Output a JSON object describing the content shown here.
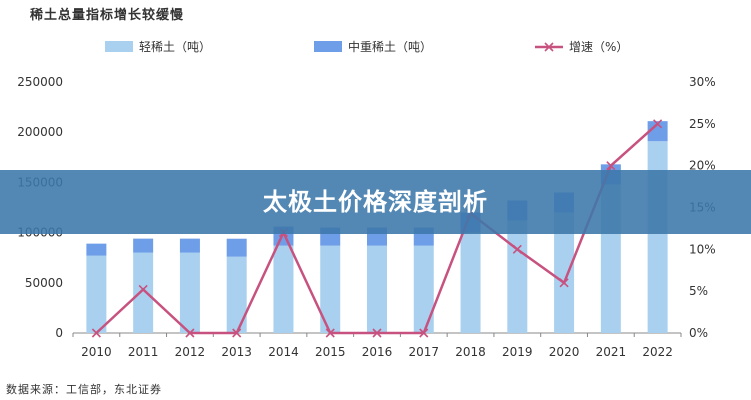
{
  "title": "稀土总量指标增长较缓慢",
  "banner": "太极土价格深度剖析",
  "source": "数据来源：工信部，东北证券",
  "colors": {
    "light": "#a9d1ef",
    "medium": "#6e9ee8",
    "line": "#c8527f",
    "banner": "#3c78aa"
  },
  "chart_data": {
    "type": "bar",
    "categories": [
      "2010",
      "2011",
      "2012",
      "2013",
      "2014",
      "2015",
      "2016",
      "2017",
      "2018",
      "2019",
      "2020",
      "2021",
      "2022"
    ],
    "series": [
      {
        "name": "轻稀土（吨）",
        "type": "bar",
        "stack": "total",
        "axis": "left",
        "values": [
          77000,
          80000,
          80000,
          76000,
          87000,
          87000,
          87000,
          87000,
          100000,
          112000,
          120000,
          148000,
          191000
        ]
      },
      {
        "name": "中重稀土（吨）",
        "type": "bar",
        "stack": "total",
        "axis": "left",
        "values": [
          12000,
          14000,
          14000,
          17900,
          19000,
          18000,
          18000,
          18000,
          20000,
          20000,
          20000,
          20000,
          20000
        ]
      },
      {
        "name": "增速（%）",
        "type": "line",
        "axis": "right",
        "values": [
          0,
          5.2,
          0,
          0,
          12,
          0,
          0,
          0,
          14.3,
          10,
          6,
          20,
          25
        ]
      }
    ],
    "y_left": {
      "min": 0,
      "max": 250000,
      "ticks": [
        "0",
        "50000",
        "100000",
        "150000",
        "200000",
        "250000"
      ]
    },
    "y_right": {
      "min": 0,
      "max": 30,
      "ticks": [
        "0%",
        "5%",
        "10%",
        "15%",
        "20%",
        "25%",
        "30%"
      ]
    },
    "legend_position": "top",
    "grid": false
  }
}
